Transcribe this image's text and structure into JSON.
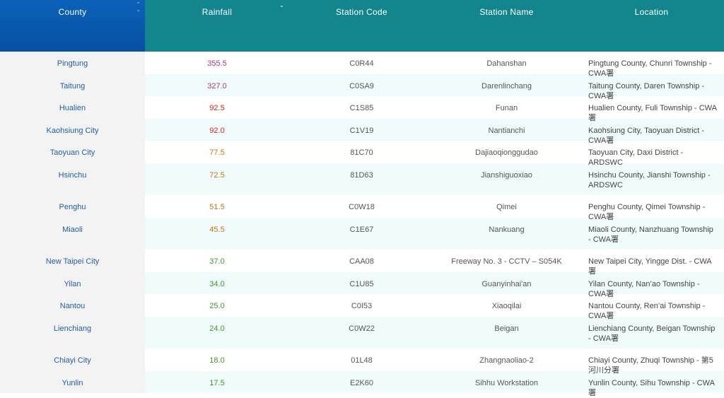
{
  "header": {
    "county": "County",
    "rainfall": "Rainfall",
    "station_code": "Station Code",
    "station_name": "Station Name",
    "location": "Location"
  },
  "colors": {
    "county_header": "#0750a4",
    "teal_header": "#12868c",
    "purple": "#b0358f",
    "red": "#d9261c",
    "orange": "#c9760c",
    "green": "#3f9a1f"
  },
  "rows": [
    {
      "county": "Pingtung",
      "rainfall": "355.5",
      "code": "C0R44",
      "name": "Dahanshan",
      "location": "Pingtung County, Chunri Township - CWA署",
      "color": "#b0358f",
      "tall": false
    },
    {
      "county": "Taitung",
      "rainfall": "327.0",
      "code": "C0SA9",
      "name": "Darenlinchang",
      "location": "Taitung County, Daren Township - CWA署",
      "color": "#b0358f",
      "tall": false
    },
    {
      "county": "Hualien",
      "rainfall": "92.5",
      "code": "C1S85",
      "name": "Funan",
      "location": "Hualien County, Fuli Township - CWA署",
      "color": "#d9261c",
      "tall": false
    },
    {
      "county": "Kaohsiung City",
      "rainfall": "92.0",
      "code": "C1V19",
      "name": "Nantianchi",
      "location": "Kaohsiung City, Taoyuan District - CWA署",
      "color": "#d9261c",
      "tall": false
    },
    {
      "county": "Taoyuan City",
      "rainfall": "77.5",
      "code": "81C70",
      "name": "Dajiaoqionggudao",
      "location": "Taoyuan City, Daxi District - ARDSWC",
      "color": "#c9760c",
      "tall": false
    },
    {
      "county": "Hsinchu",
      "rainfall": "72.5",
      "code": "81D63",
      "name": "Jianshiguoxiao",
      "location": "Hsinchu County, Jianshi Township - ARDSWC",
      "color": "#c9760c",
      "tall": true
    },
    {
      "county": "Penghu",
      "rainfall": "51.5",
      "code": "C0W18",
      "name": "Qimei",
      "location": "Penghu County, Qimei Township - CWA署",
      "color": "#c9760c",
      "tall": false
    },
    {
      "county": "Miaoli",
      "rainfall": "45.5",
      "code": "C1E67",
      "name": "Nankuang",
      "location": "Miaoli County, Nanzhuang Township - CWA署",
      "color": "#c9760c",
      "tall": true
    },
    {
      "county": "New Taipei City",
      "rainfall": "37.0",
      "code": "CAA08",
      "name": "Freeway No. 3 - CCTV – S054K",
      "location": "New Taipei City, Yingge Dist. - CWA署",
      "color": "#3f9a1f",
      "tall": false
    },
    {
      "county": "Yilan",
      "rainfall": "34.0",
      "code": "C1U85",
      "name": "Guanyinhai'an",
      "location": "Yilan County, Nan’ao Township - CWA署",
      "color": "#3f9a1f",
      "tall": false
    },
    {
      "county": "Nantou",
      "rainfall": "25.0",
      "code": "C0I53",
      "name": "Xiaoqilai",
      "location": "Nantou County, Ren’ai Township - CWA署",
      "color": "#3f9a1f",
      "tall": false
    },
    {
      "county": "Lienchiang",
      "rainfall": "24.0",
      "code": "C0W22",
      "name": "Beigan",
      "location": "Lienchiang County, Beigan Township - CWA署",
      "color": "#3f9a1f",
      "tall": true
    },
    {
      "county": "Chiayi City",
      "rainfall": "18.0",
      "code": "01L48",
      "name": "Zhangnaoliao-2",
      "location": "Chiayi County, Zhuqi Township - 第5河川分署",
      "color": "#3f9a1f",
      "tall": false
    },
    {
      "county": "Yunlin",
      "rainfall": "17.5",
      "code": "E2K60",
      "name": "Sihhu Workstation",
      "location": "Yunlin County, Sihu Township - CWA署",
      "color": "#3f9a1f",
      "tall": false
    }
  ]
}
